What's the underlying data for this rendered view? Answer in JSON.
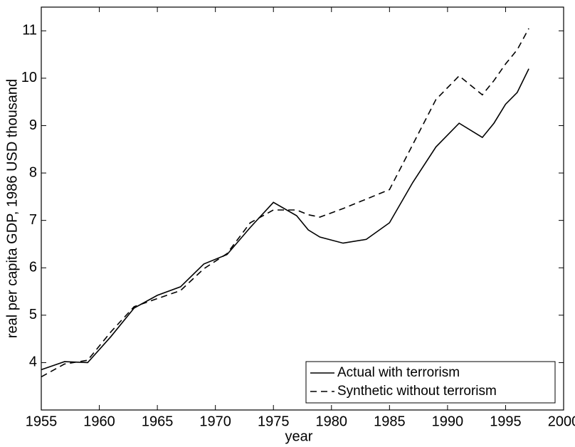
{
  "chart_data": {
    "type": "line",
    "xlabel": "year",
    "ylabel": "real per capita GDP, 1986 USD thousand",
    "x": [
      1955,
      1957,
      1959,
      1961,
      1963,
      1965,
      1967,
      1969,
      1971,
      1973,
      1975,
      1977,
      1978,
      1979,
      1981,
      1983,
      1985,
      1987,
      1989,
      1991,
      1993,
      1994,
      1995,
      1996,
      1997
    ],
    "series": [
      {
        "name": "Actual with terrorism",
        "color": "#000000",
        "dash": "solid",
        "values": [
          3.85,
          4.02,
          4.0,
          4.55,
          5.15,
          5.42,
          5.6,
          6.08,
          6.28,
          6.85,
          7.38,
          7.1,
          6.8,
          6.65,
          6.52,
          6.6,
          6.95,
          7.8,
          8.55,
          9.05,
          8.75,
          9.05,
          9.45,
          9.7,
          10.2
        ]
      },
      {
        "name": "Synthetic without terrorism",
        "color": "#000000",
        "dash": "dashed",
        "values": [
          3.7,
          3.97,
          4.05,
          4.65,
          5.18,
          5.35,
          5.52,
          5.98,
          6.3,
          6.95,
          7.22,
          7.22,
          7.12,
          7.07,
          7.25,
          7.45,
          7.65,
          8.6,
          9.55,
          10.05,
          9.65,
          9.95,
          10.3,
          10.6,
          11.05
        ]
      }
    ],
    "xlim": [
      1955,
      2000
    ],
    "xticks": [
      1955,
      1960,
      1965,
      1970,
      1975,
      1980,
      1985,
      1990,
      1995,
      2000
    ],
    "ylim": [
      3,
      11.5
    ],
    "yticks": [
      4,
      5,
      6,
      7,
      8,
      9,
      10,
      11
    ],
    "grid": false,
    "legend": "lower right"
  }
}
